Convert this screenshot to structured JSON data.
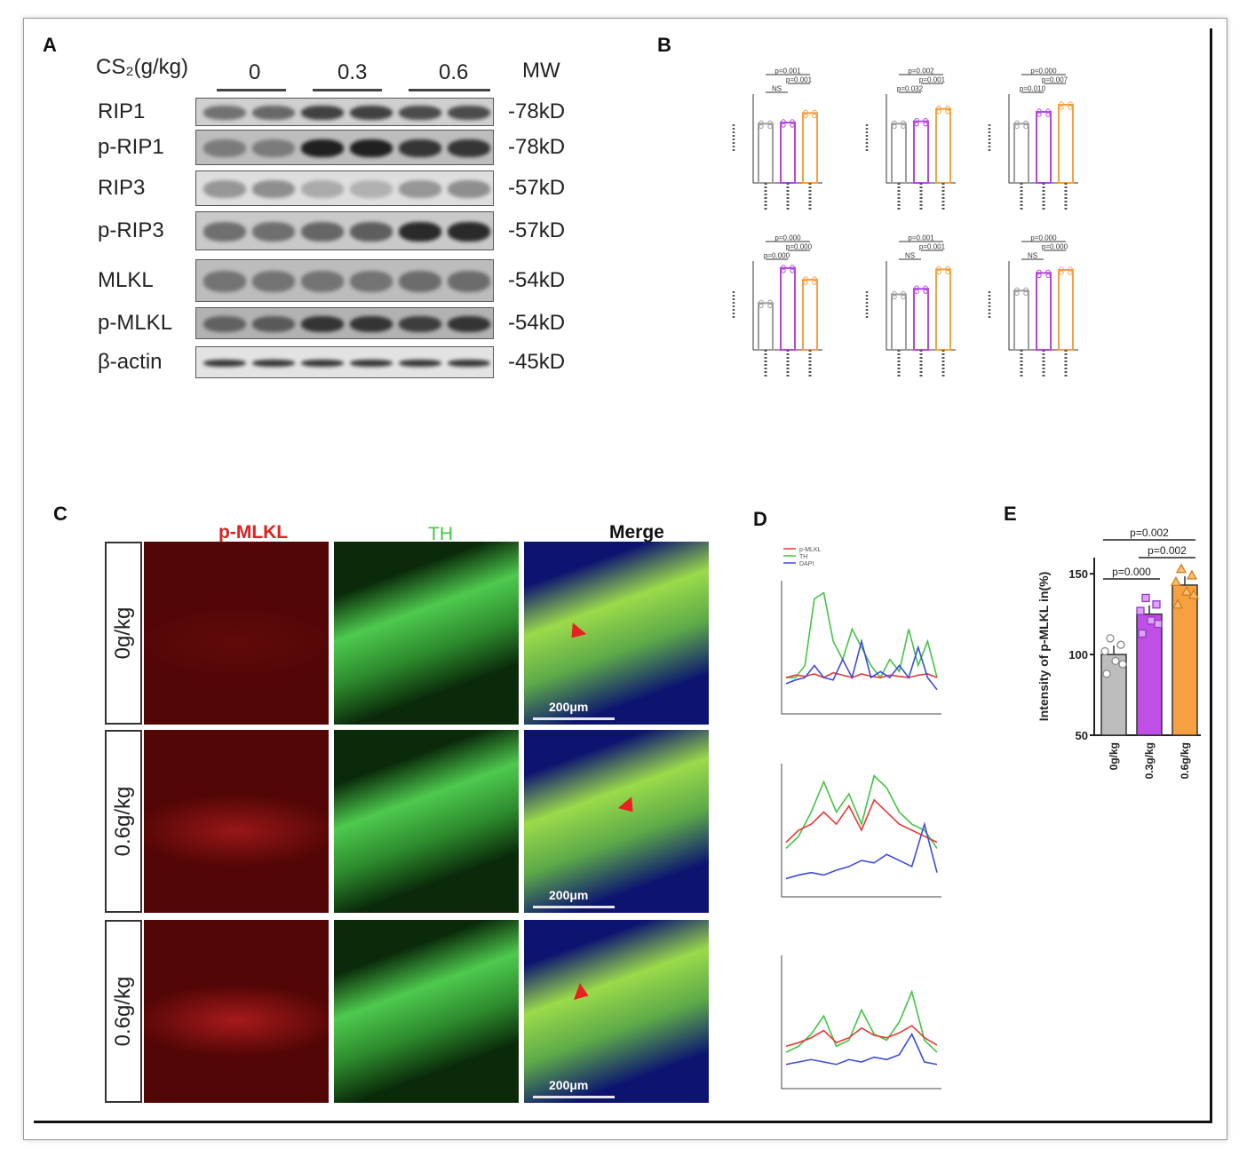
{
  "panel_letters": {
    "a": "A",
    "b": "B",
    "c": "C",
    "d": "D",
    "e": "E"
  },
  "panel_a": {
    "dose_header": "CS₂(g/kg)",
    "doses": [
      "0",
      "0.3",
      "0.6"
    ],
    "mw_header": "MW",
    "rows": [
      {
        "label": "RIP1",
        "mw": "-78kD"
      },
      {
        "label": "p-RIP1",
        "mw": "-78kD"
      },
      {
        "label": "RIP3",
        "mw": "-57kD"
      },
      {
        "label": "p-RIP3",
        "mw": "-57kD"
      },
      {
        "label": "MLKL",
        "mw": "-54kD"
      },
      {
        "label": "p-MLKL",
        "mw": "-54kD"
      },
      {
        "label": "β-actin",
        "mw": "-45kD"
      }
    ]
  },
  "panel_b": {
    "colors": {
      "control": "#9e9e9e",
      "low": "#b547e0",
      "high": "#f5a142"
    },
    "minis": [
      {
        "lines": [
          "p=0.001",
          "p=0.001",
          "NS"
        ],
        "values": [
          100,
          102,
          118
        ]
      },
      {
        "lines": [
          "p=0.002",
          "p=0.001",
          "p=0.032"
        ],
        "values": [
          100,
          104,
          125
        ]
      },
      {
        "lines": [
          "p=0.000",
          "p=0.007",
          "p=0.010"
        ],
        "values": [
          100,
          120,
          132
        ]
      },
      {
        "lines": [
          "p=0.000",
          "p=0.000",
          "p=0.000"
        ],
        "values": [
          100,
          175,
          150
        ]
      },
      {
        "lines": [
          "p=0.001",
          "p=0.001",
          "NS"
        ],
        "values": [
          100,
          110,
          145
        ]
      },
      {
        "lines": [
          "p=0.000",
          "p=0.000",
          "NS"
        ],
        "values": [
          100,
          130,
          135
        ]
      }
    ]
  },
  "panel_c": {
    "col_heads": {
      "pmlkl": "p-MLKL",
      "th": "TH",
      "merge": "Merge"
    },
    "col_colors": {
      "pmlkl": "#e02020",
      "th": "#3fc73f",
      "merge": "#111111"
    },
    "row_labels": [
      "0g/kg",
      "0.6g/kg",
      "0.6g/kg"
    ],
    "scale_bar": "200μm"
  },
  "chart_data": [
    {
      "type": "bar",
      "panel": "E",
      "categories": [
        "0g/kg",
        "0.3g/kg",
        "0.6g/kg"
      ],
      "values": [
        100,
        125,
        143
      ],
      "colors": [
        "#bdbdbd",
        "#c04fe6",
        "#f5a142"
      ],
      "ylabel": "Intensity of p-MLKL in(%)",
      "yticks": [
        50,
        100,
        150
      ],
      "ylim": [
        50,
        160
      ],
      "brackets": [
        {
          "from": 0,
          "to": 1,
          "label": "p=0.000"
        },
        {
          "from": 1,
          "to": 2,
          "label": "p=0.002"
        },
        {
          "from": 0,
          "to": 2,
          "label": "p=0.002"
        }
      ]
    },
    {
      "type": "line",
      "panel": "D",
      "legend": [
        "p-MLKL",
        "TH",
        "DAPI"
      ],
      "colors": [
        "#e53935",
        "#43c443",
        "#3b4bdc"
      ]
    }
  ]
}
